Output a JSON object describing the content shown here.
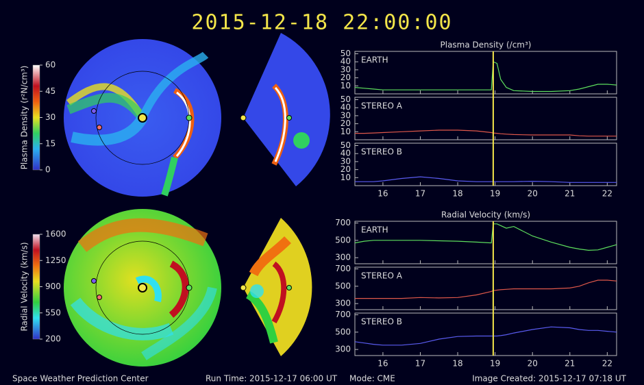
{
  "title": "2015-12-18 22:00:00",
  "footer": {
    "org": "Space Weather Prediction Center",
    "run_time": "Run Time: 2015-12-17 06:00 UT",
    "mode": "Mode: CME",
    "created": "Image Created: 2015-12-17 07:18 UT"
  },
  "colorbars": [
    {
      "label": "Plasma Density (r²N/cm³)",
      "lim": [
        0,
        60
      ],
      "ticks": [
        0,
        15,
        30,
        45,
        60
      ]
    },
    {
      "label": "Radial Velocity (km/s)",
      "lim": [
        200,
        1600
      ],
      "ticks": [
        200,
        550,
        900,
        1250,
        1600
      ]
    }
  ],
  "chart_data": [
    {
      "type": "line",
      "title": "Plasma Density (/cm³)",
      "xlim": [
        15.25,
        22.25
      ],
      "xticks": [
        16,
        17,
        18,
        19,
        20,
        21,
        22
      ],
      "marker_x": 18.95,
      "x": [
        15.25,
        15.5,
        15.75,
        16,
        16.5,
        17,
        17.5,
        18,
        18.5,
        18.9,
        18.95,
        19.05,
        19.15,
        19.3,
        19.5,
        20,
        20.5,
        21,
        21.25,
        21.5,
        21.75,
        22,
        22.25
      ],
      "series": [
        {
          "name": "EARTH",
          "color": "#5ee05e",
          "ylim": [
            0,
            53
          ],
          "yticks": [
            10,
            20,
            30,
            40,
            50
          ],
          "values": [
            8,
            7,
            6,
            5,
            5,
            5,
            5,
            5,
            5,
            5,
            40,
            38,
            18,
            8,
            4,
            3,
            3,
            4,
            6,
            9,
            12,
            12,
            11
          ]
        },
        {
          "name": "STEREO A",
          "color": "#e0584a",
          "ylim": [
            0,
            53
          ],
          "yticks": [
            10,
            20,
            30,
            40,
            50
          ],
          "values": [
            8,
            8,
            8.5,
            9,
            10,
            11,
            12,
            12,
            11,
            9,
            8.5,
            8,
            7.5,
            7,
            6.5,
            6,
            6,
            6,
            5,
            4.5,
            4.5,
            4.5,
            4.5
          ]
        },
        {
          "name": "STEREO B",
          "color": "#5a5cf0",
          "ylim": [
            0,
            53
          ],
          "yticks": [
            10,
            20,
            30,
            40,
            50
          ],
          "values": [
            5,
            5,
            5,
            6,
            9,
            11,
            9,
            6,
            5,
            5,
            5,
            5,
            5,
            5,
            5,
            5.5,
            5,
            4,
            4,
            4,
            4,
            4,
            4
          ]
        }
      ]
    },
    {
      "type": "line",
      "title": "Radial Velocity (km/s)",
      "xlim": [
        15.25,
        22.25
      ],
      "xticks": [
        16,
        17,
        18,
        19,
        20,
        21,
        22
      ],
      "marker_x": 18.95,
      "x": [
        15.25,
        15.5,
        15.75,
        16,
        16.5,
        17,
        17.5,
        18,
        18.5,
        18.9,
        18.95,
        19.05,
        19.15,
        19.3,
        19.5,
        20,
        20.5,
        21,
        21.25,
        21.5,
        21.75,
        22,
        22.25
      ],
      "series": [
        {
          "name": "EARTH",
          "color": "#5ee05e",
          "ylim": [
            230,
            720
          ],
          "yticks": [
            300,
            500,
            700
          ],
          "values": [
            470,
            490,
            500,
            500,
            500,
            500,
            495,
            490,
            480,
            470,
            690,
            690,
            670,
            640,
            660,
            550,
            480,
            420,
            400,
            385,
            390,
            420,
            450
          ]
        },
        {
          "name": "STEREO A",
          "color": "#e0584a",
          "ylim": [
            230,
            720
          ],
          "yticks": [
            300,
            500,
            700
          ],
          "values": [
            360,
            360,
            360,
            360,
            360,
            370,
            365,
            370,
            400,
            440,
            450,
            455,
            460,
            465,
            470,
            470,
            470,
            480,
            500,
            540,
            570,
            570,
            560
          ]
        },
        {
          "name": "STEREO B",
          "color": "#5a5cf0",
          "ylim": [
            230,
            720
          ],
          "yticks": [
            300,
            500,
            700
          ],
          "values": [
            390,
            375,
            360,
            350,
            350,
            370,
            420,
            450,
            455,
            455,
            455,
            455,
            460,
            470,
            490,
            530,
            560,
            550,
            530,
            520,
            520,
            510,
            500
          ]
        }
      ]
    }
  ]
}
